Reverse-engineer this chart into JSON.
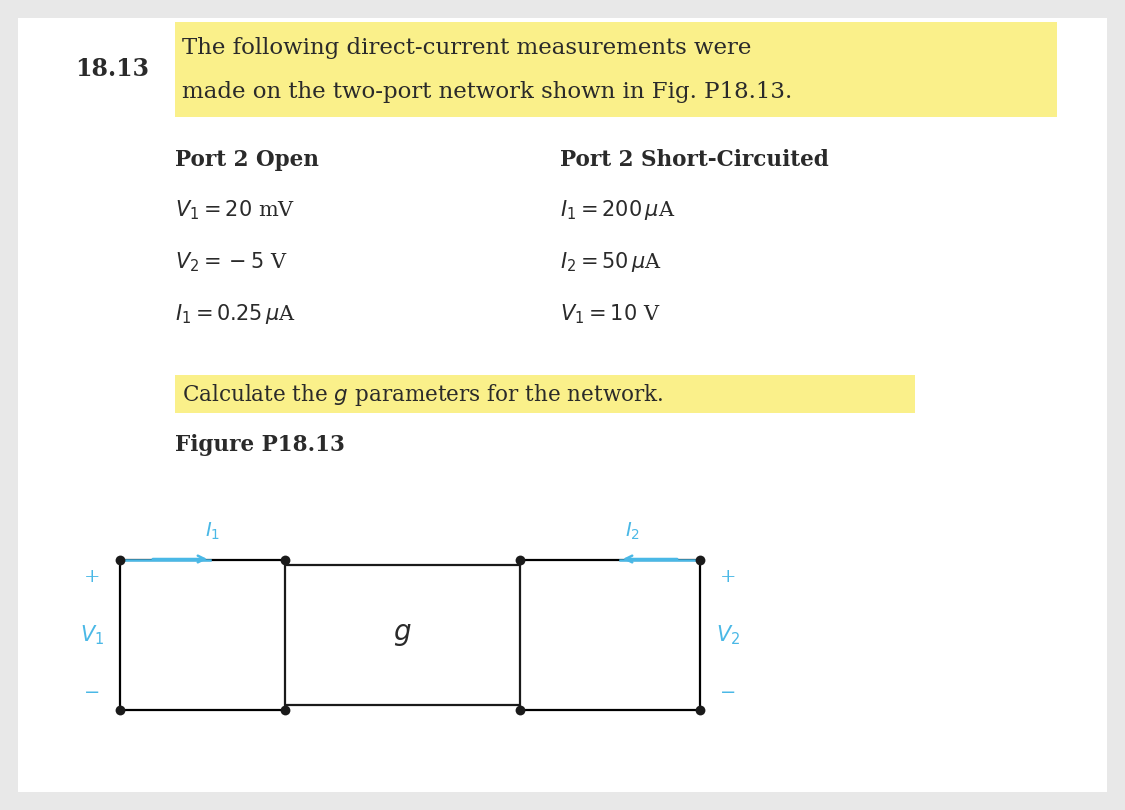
{
  "bg_color": "#e8e8e8",
  "content_bg": "#ffffff",
  "highlight_yellow": "#faf08a",
  "problem_number": "18.13",
  "title_line1": "The following direct-current measurements were",
  "title_line2": "made on the two-port network shown in Fig. P18.13.",
  "col1_header": "Port 2 Open",
  "col2_header": "Port 2 Short-Circuited",
  "col1_lines": [
    "$V_1 = 20$ mV",
    "$V_2 = -5$ V",
    "$I_1 = 0.25\\,\\mu$A"
  ],
  "col2_lines": [
    "$I_1 = 200\\,\\mu$A",
    "$I_2 = 50\\,\\mu$A",
    "$V_1 = 10$ V"
  ],
  "calculate_text": "Calculate the $g$ parameters for the network.",
  "figure_label": "Figure P18.13",
  "cyan_color": "#4ab8e6",
  "dot_color": "#1a1a1a",
  "box_color": "#1a1a1a",
  "text_color": "#2a2a2a",
  "g_label": "$g$"
}
